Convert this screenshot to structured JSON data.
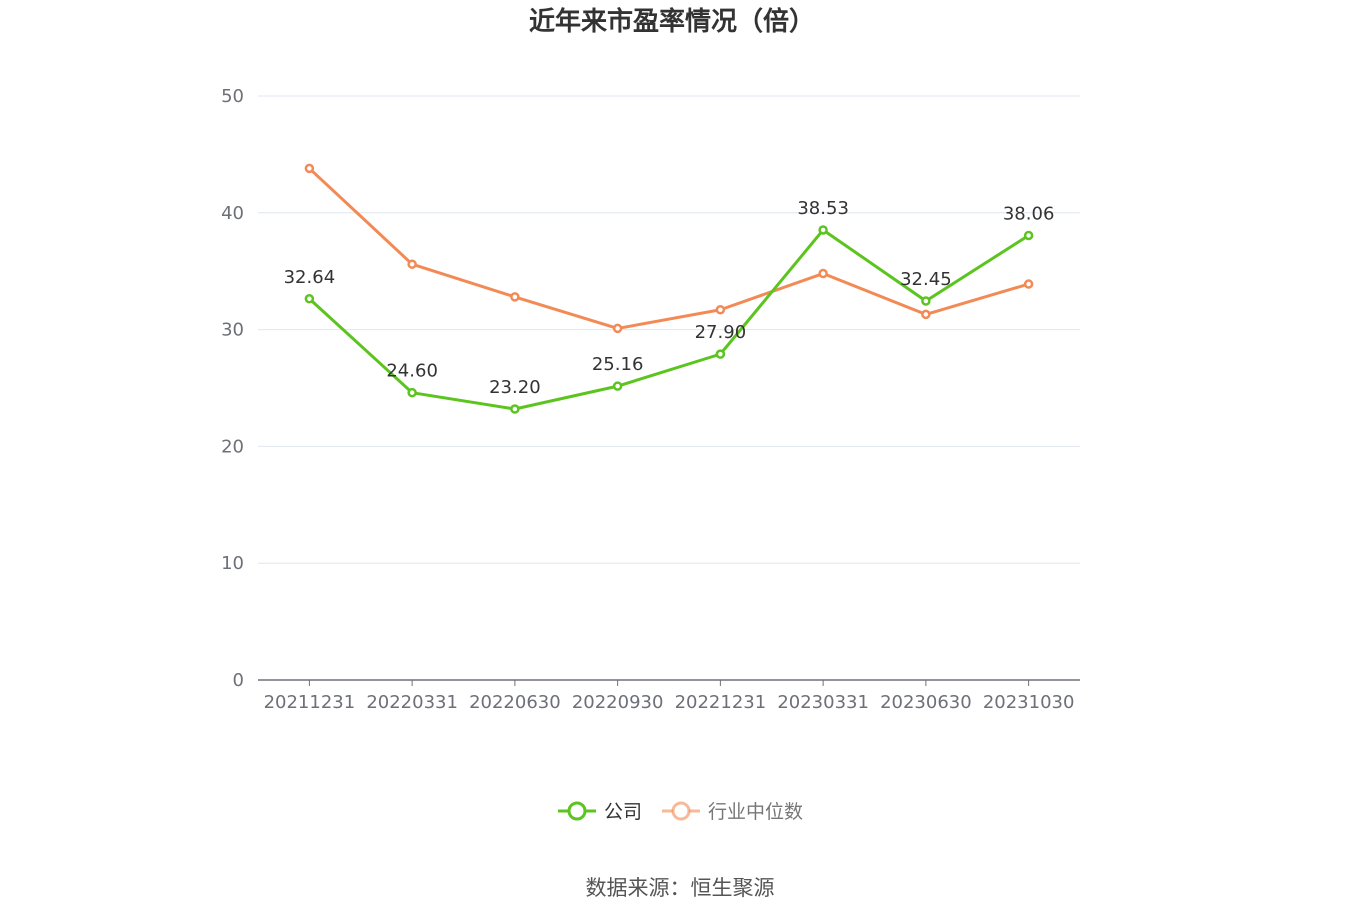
{
  "chart_data": {
    "type": "line",
    "title": "近年来市盈率情况（倍）",
    "categories": [
      "20211231",
      "20220331",
      "20220630",
      "20220930",
      "20221231",
      "20230331",
      "20230630",
      "20231030"
    ],
    "series": [
      {
        "name": "公司",
        "color": "#5bc41f",
        "values": [
          32.64,
          24.6,
          23.2,
          25.16,
          27.9,
          38.53,
          32.45,
          38.06
        ],
        "labels": [
          "32.64",
          "24.60",
          "23.20",
          "25.16",
          "27.90",
          "38.53",
          "32.45",
          "38.06"
        ]
      },
      {
        "name": "行业中位数",
        "color": "#f38a55",
        "values": [
          43.8,
          35.6,
          32.8,
          30.1,
          31.7,
          34.8,
          31.3,
          33.9
        ]
      }
    ],
    "ylim": [
      0,
      50
    ],
    "yticks": [
      0,
      10,
      20,
      30,
      40,
      50
    ],
    "grid": true,
    "legend_position": "bottom"
  },
  "source": "数据来源：恒生聚源"
}
